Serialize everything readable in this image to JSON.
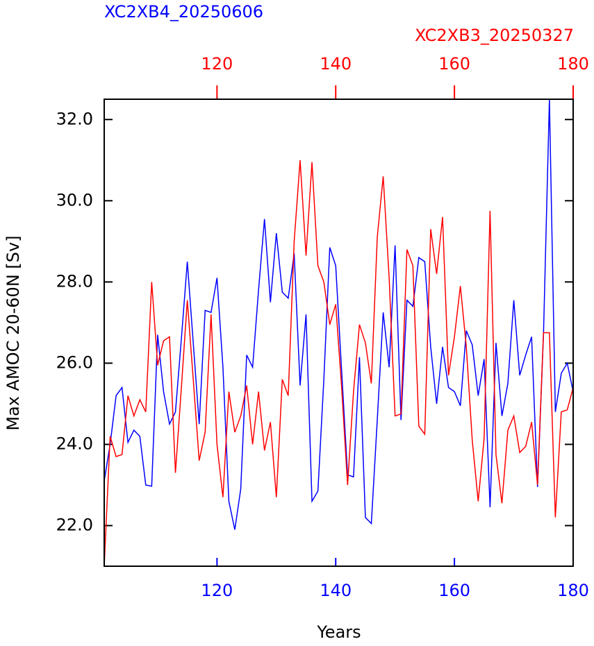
{
  "chart_data": {
    "type": "line",
    "ylabel": "Max AMOC 20-60N [Sv]",
    "xlabel": "Years",
    "x": [
      101,
      102,
      103,
      104,
      105,
      106,
      107,
      108,
      109,
      110,
      111,
      112,
      113,
      114,
      115,
      116,
      117,
      118,
      119,
      120,
      121,
      122,
      123,
      124,
      125,
      126,
      127,
      128,
      129,
      130,
      131,
      132,
      133,
      134,
      135,
      136,
      137,
      138,
      139,
      140,
      141,
      142,
      143,
      144,
      145,
      146,
      147,
      148,
      149,
      150,
      151,
      152,
      153,
      154,
      155,
      156,
      157,
      158,
      159,
      160,
      161,
      162,
      163,
      164,
      165,
      166,
      167,
      168,
      169,
      170,
      171,
      172,
      173,
      174,
      175,
      176,
      177,
      178,
      179,
      180
    ],
    "xlim": [
      101,
      180
    ],
    "xticks": [
      120,
      140,
      160,
      180
    ],
    "x2lim": [
      101,
      180
    ],
    "x2ticks": [
      120,
      140,
      160,
      180
    ],
    "ylim": [
      21,
      32.5
    ],
    "yticks": [
      {
        "value": 22,
        "label": "22.0"
      },
      {
        "value": 24,
        "label": "24.0"
      },
      {
        "value": 26,
        "label": "26.0"
      },
      {
        "value": 28,
        "label": "28.0"
      },
      {
        "value": 30,
        "label": "30.0"
      },
      {
        "value": 32,
        "label": "32.0"
      }
    ],
    "series": [
      {
        "name": "XC2XB4_20250606",
        "color": "#0000ff",
        "axis": "x",
        "values": [
          23.1,
          24.0,
          25.2,
          25.4,
          24.05,
          24.35,
          24.2,
          23.0,
          22.97,
          26.7,
          25.3,
          24.5,
          24.8,
          26.6,
          28.5,
          26.5,
          24.5,
          27.3,
          27.25,
          28.1,
          25.9,
          22.6,
          21.9,
          22.9,
          26.2,
          25.9,
          27.8,
          29.55,
          27.5,
          29.2,
          27.75,
          27.6,
          28.7,
          25.45,
          27.2,
          22.6,
          22.85,
          25.6,
          28.85,
          28.4,
          25.8,
          23.25,
          23.2,
          26.15,
          22.2,
          22.05,
          24.6,
          27.25,
          25.9,
          28.9,
          24.6,
          27.55,
          27.4,
          28.6,
          28.5,
          26.4,
          25.0,
          26.4,
          25.4,
          25.3,
          24.95,
          26.8,
          26.45,
          25.2,
          26.1,
          22.45,
          26.5,
          24.7,
          25.5,
          27.55,
          25.7,
          26.2,
          26.65,
          22.95,
          26.7,
          32.5,
          24.8,
          25.75,
          26.0,
          25.3
        ]
      },
      {
        "name": "XC2XB3_20250327",
        "color": "#ff0000",
        "axis": "x2",
        "values": [
          21.0,
          24.2,
          23.7,
          23.75,
          25.2,
          24.7,
          25.1,
          24.8,
          28.0,
          25.95,
          26.55,
          26.65,
          23.3,
          25.4,
          27.55,
          25.6,
          23.6,
          24.3,
          27.2,
          24.0,
          22.7,
          25.3,
          24.3,
          24.7,
          25.45,
          24.0,
          25.3,
          23.85,
          24.55,
          22.7,
          25.6,
          25.2,
          29.0,
          31.0,
          28.65,
          30.95,
          28.4,
          28.0,
          26.95,
          27.45,
          25.4,
          23.0,
          25.3,
          26.95,
          26.5,
          25.5,
          29.1,
          30.6,
          28.1,
          24.7,
          24.75,
          28.8,
          28.4,
          24.45,
          24.25,
          29.3,
          28.2,
          29.6,
          25.7,
          26.65,
          27.9,
          26.4,
          24.1,
          22.6,
          24.15,
          29.75,
          23.75,
          22.55,
          24.35,
          24.7,
          23.8,
          23.95,
          24.55,
          23.0,
          26.75,
          26.75,
          22.2,
          24.8,
          24.85,
          25.4
        ]
      }
    ]
  }
}
